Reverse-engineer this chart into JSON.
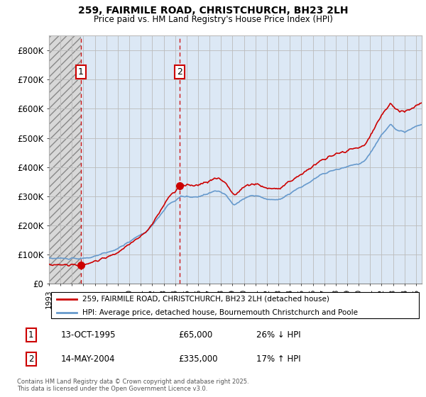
{
  "title_line1": "259, FAIRMILE ROAD, CHRISTCHURCH, BH23 2LH",
  "title_line2": "Price paid vs. HM Land Registry's House Price Index (HPI)",
  "ylim": [
    0,
    850000
  ],
  "yticks": [
    0,
    100000,
    200000,
    300000,
    400000,
    500000,
    600000,
    700000,
    800000
  ],
  "ytick_labels": [
    "£0",
    "£100K",
    "£200K",
    "£300K",
    "£400K",
    "£500K",
    "£600K",
    "£700K",
    "£800K"
  ],
  "xmin": 1993.0,
  "xmax": 2025.5,
  "background_color": "#ffffff",
  "hatch_area_color": "#e8e8e8",
  "plot_bg_color": "#dce8f5",
  "grid_color": "#bbbbbb",
  "legend_label_red": "259, FAIRMILE ROAD, CHRISTCHURCH, BH23 2LH (detached house)",
  "legend_label_blue": "HPI: Average price, detached house, Bournemouth Christchurch and Poole",
  "red_color": "#cc0000",
  "blue_color": "#6699cc",
  "sale1_date": 1995.79,
  "sale1_price": 65000,
  "sale2_date": 2004.37,
  "sale2_price": 335000,
  "footer": "Contains HM Land Registry data © Crown copyright and database right 2025.\nThis data is licensed under the Open Government Licence v3.0.",
  "annotation1_date": "13-OCT-1995",
  "annotation1_price": "£65,000",
  "annotation1_hpi": "26% ↓ HPI",
  "annotation2_date": "14-MAY-2004",
  "annotation2_price": "£335,000",
  "annotation2_hpi": "17% ↑ HPI"
}
